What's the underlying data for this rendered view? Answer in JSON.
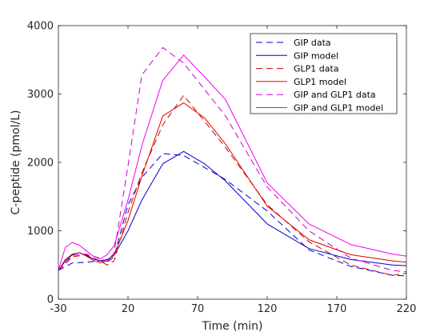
{
  "chart_data": {
    "type": "line",
    "title": "",
    "xlabel": "Time (min)",
    "ylabel": "C-peptide (pmol/L)",
    "xlim": [
      -30,
      220
    ],
    "ylim": [
      0,
      4000
    ],
    "xticks": [
      -30,
      20,
      70,
      120,
      170,
      220
    ],
    "yticks": [
      0,
      1000,
      2000,
      3000,
      4000
    ],
    "xtick_labels": [
      "-30",
      "20",
      "70",
      "120",
      "170",
      "220"
    ],
    "ytick_labels": [
      "0",
      "1000",
      "2000",
      "3000",
      "4000"
    ],
    "grid": false,
    "legend_position": "top-right",
    "series": [
      {
        "name": "GIP data",
        "color": "#0000cc",
        "dash": "dashed",
        "x": [
          -30,
          -20,
          -10,
          0,
          5,
          10,
          20,
          30,
          45,
          60,
          90,
          120,
          150,
          180,
          210,
          220
        ],
        "y": [
          420,
          530,
          540,
          560,
          540,
          620,
          1380,
          1780,
          2130,
          2100,
          1750,
          1290,
          720,
          480,
          350,
          340
        ]
      },
      {
        "name": "GIP model",
        "color": "#0000cc",
        "dash": "solid",
        "x": [
          -30,
          -25,
          -20,
          -15,
          -10,
          -5,
          0,
          5,
          10,
          20,
          30,
          45,
          60,
          75,
          90,
          120,
          150,
          180,
          210,
          220
        ],
        "y": [
          420,
          560,
          650,
          680,
          640,
          590,
          560,
          580,
          640,
          1000,
          1450,
          1980,
          2160,
          1980,
          1730,
          1100,
          740,
          580,
          500,
          490
        ]
      },
      {
        "name": "GLP1 data",
        "color": "#cc0000",
        "dash": "dashed",
        "x": [
          -30,
          -20,
          -10,
          0,
          5,
          10,
          20,
          30,
          45,
          60,
          90,
          120,
          150,
          180,
          210,
          220
        ],
        "y": [
          420,
          620,
          650,
          560,
          500,
          560,
          1270,
          1850,
          2550,
          2980,
          2220,
          1380,
          840,
          500,
          350,
          380
        ]
      },
      {
        "name": "GLP1 model",
        "color": "#e00000",
        "dash": "solid",
        "x": [
          -30,
          -25,
          -20,
          -15,
          -10,
          -5,
          0,
          5,
          10,
          20,
          30,
          45,
          60,
          75,
          90,
          120,
          150,
          180,
          210,
          220
        ],
        "y": [
          420,
          580,
          660,
          680,
          630,
          570,
          530,
          560,
          650,
          1150,
          1800,
          2680,
          2870,
          2650,
          2270,
          1360,
          870,
          650,
          560,
          540
        ]
      },
      {
        "name": "GIP and GLP1 data",
        "color": "#cc00cc",
        "dash": "dashed",
        "x": [
          -30,
          -20,
          -10,
          0,
          5,
          10,
          20,
          30,
          45,
          60,
          90,
          120,
          150,
          180,
          210,
          220
        ],
        "y": [
          420,
          640,
          660,
          600,
          550,
          680,
          1950,
          3280,
          3680,
          3450,
          2680,
          1640,
          1000,
          600,
          420,
          400
        ]
      },
      {
        "name": "GIP and GLP1 model",
        "color": "#ee00ee",
        "dash": "solid",
        "x": [
          -30,
          -25,
          -20,
          -15,
          -10,
          -5,
          0,
          5,
          10,
          20,
          30,
          45,
          60,
          75,
          90,
          120,
          150,
          180,
          210,
          220
        ],
        "y": [
          420,
          760,
          830,
          790,
          710,
          630,
          590,
          650,
          780,
          1450,
          2250,
          3200,
          3570,
          3250,
          2920,
          1700,
          1100,
          800,
          660,
          630
        ]
      }
    ]
  }
}
